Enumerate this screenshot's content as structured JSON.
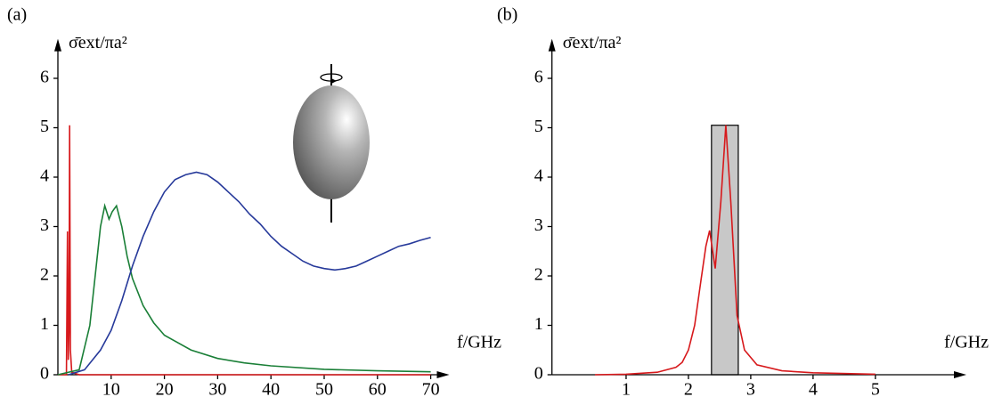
{
  "chart_data": [
    {
      "type": "line",
      "panel_label": "(a)",
      "ylabel": "σ̄ext/πa²",
      "xlabel": "f/GHz",
      "xlim": [
        0,
        73.5
      ],
      "ylim": [
        0,
        6.8
      ],
      "xticks": [
        10,
        20,
        30,
        40,
        50,
        60,
        70
      ],
      "yticks": [
        0,
        1,
        2,
        3,
        4,
        5,
        6
      ],
      "series": [
        {
          "color": "#d7191c",
          "x": [
            0,
            1.6,
            1.8,
            1.95,
            2.1,
            2.2,
            2.35,
            2.6,
            4,
            70
          ],
          "values": [
            0,
            0,
            2.9,
            0.3,
            1,
            5.05,
            0.5,
            0.05,
            0,
            0
          ]
        },
        {
          "color": "#1a7f37",
          "x": [
            0,
            4,
            6,
            7,
            8,
            8.8,
            9.6,
            10.2,
            11,
            12,
            13,
            14,
            16,
            18,
            20,
            25,
            30,
            35,
            40,
            50,
            60,
            70
          ],
          "values": [
            0,
            0.1,
            1.0,
            2.0,
            3.0,
            3.42,
            3.15,
            3.3,
            3.42,
            3.0,
            2.4,
            1.95,
            1.4,
            1.05,
            0.8,
            0.5,
            0.33,
            0.24,
            0.18,
            0.11,
            0.08,
            0.06
          ]
        },
        {
          "color": "#26399a",
          "x": [
            2,
            5,
            8,
            10,
            12,
            14,
            16,
            18,
            20,
            22,
            24,
            26,
            28,
            30,
            32,
            34,
            36,
            38,
            40,
            42,
            44,
            46,
            48,
            50,
            52,
            54,
            56,
            58,
            60,
            62,
            64,
            66,
            68,
            70
          ],
          "values": [
            0,
            0.1,
            0.5,
            0.9,
            1.5,
            2.2,
            2.8,
            3.3,
            3.7,
            3.95,
            4.05,
            4.1,
            4.05,
            3.9,
            3.7,
            3.5,
            3.25,
            3.05,
            2.8,
            2.6,
            2.45,
            2.3,
            2.2,
            2.15,
            2.12,
            2.15,
            2.2,
            2.3,
            2.4,
            2.5,
            2.6,
            2.65,
            2.72,
            2.78
          ]
        }
      ]
    },
    {
      "type": "line",
      "panel_label": "(b)",
      "ylabel": "σ̄ext/πa²",
      "xlabel": "f/GHz",
      "xlim": [
        -0.19,
        6.46
      ],
      "ylim": [
        0,
        6.8
      ],
      "xticks": [
        1,
        2,
        3,
        4,
        5
      ],
      "yticks": [
        0,
        1,
        2,
        3,
        4,
        5,
        6
      ],
      "highlight": {
        "x": [
          2.37,
          2.8
        ],
        "top": 5.05,
        "color": "#c8c8c8"
      },
      "series": [
        {
          "color": "#d7191c",
          "x": [
            0.5,
            1,
            1.5,
            1.8,
            1.9,
            2.0,
            2.1,
            2.2,
            2.28,
            2.34,
            2.43,
            2.52,
            2.6,
            2.68,
            2.78,
            2.9,
            3.1,
            3.5,
            4,
            5
          ],
          "values": [
            0,
            0.01,
            0.05,
            0.15,
            0.25,
            0.5,
            1.0,
            1.9,
            2.6,
            2.92,
            2.15,
            3.5,
            5.05,
            3.5,
            1.2,
            0.5,
            0.2,
            0.08,
            0.04,
            0.01
          ]
        }
      ]
    }
  ]
}
